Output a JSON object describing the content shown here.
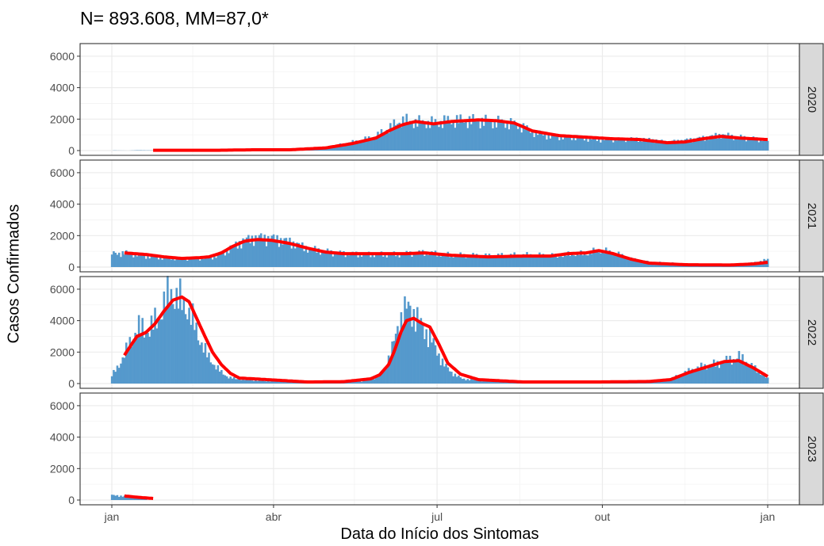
{
  "chart_data": {
    "type": "bar",
    "title": "N= 893.608, MM=87,0*",
    "xlabel": "Data do Início dos Sintomas",
    "ylabel": "Casos Confirmados",
    "ylim": [
      0,
      6500
    ],
    "yticks": [
      0,
      2000,
      4000,
      6000
    ],
    "xticks": [
      "jan",
      "abr",
      "jul",
      "out",
      "jan"
    ],
    "x_range_days": [
      1,
      366
    ],
    "grid": true,
    "colors": {
      "bars": "#5599cc",
      "moving_average": "#ff0000",
      "strip_bg": "#d9d9d9",
      "grid": "#ebebeb"
    },
    "series": [
      {
        "name": "Casos Confirmados",
        "kind": "bar"
      },
      {
        "name": "MM",
        "kind": "line"
      }
    ],
    "panels": [
      {
        "strip_label": "2020",
        "bars_range": [
          2,
          366
        ],
        "bars_anchors": [
          [
            2,
            10
          ],
          [
            10,
            0
          ],
          [
            15,
            20
          ],
          [
            25,
            10
          ],
          [
            40,
            5
          ],
          [
            60,
            5
          ],
          [
            80,
            30
          ],
          [
            100,
            40
          ],
          [
            118,
            150
          ],
          [
            130,
            400
          ],
          [
            140,
            650
          ],
          [
            148,
            900
          ],
          [
            152,
            1200
          ],
          [
            158,
            1600
          ],
          [
            162,
            1900
          ],
          [
            170,
            1800
          ],
          [
            180,
            1750
          ],
          [
            190,
            1900
          ],
          [
            200,
            1900
          ],
          [
            210,
            1850
          ],
          [
            220,
            1800
          ],
          [
            228,
            1600
          ],
          [
            235,
            1200
          ],
          [
            245,
            900
          ],
          [
            260,
            850
          ],
          [
            270,
            700
          ],
          [
            290,
            750
          ],
          [
            300,
            700
          ],
          [
            310,
            550
          ],
          [
            320,
            650
          ],
          [
            330,
            800
          ],
          [
            340,
            1000
          ],
          [
            350,
            850
          ],
          [
            366,
            650
          ]
        ],
        "ma_range": [
          24,
          366
        ],
        "ma_anchors": [
          [
            24,
            20
          ],
          [
            60,
            20
          ],
          [
            80,
            50
          ],
          [
            100,
            50
          ],
          [
            120,
            170
          ],
          [
            135,
            450
          ],
          [
            148,
            800
          ],
          [
            156,
            1300
          ],
          [
            163,
            1650
          ],
          [
            170,
            1850
          ],
          [
            180,
            1700
          ],
          [
            190,
            1850
          ],
          [
            205,
            1950
          ],
          [
            215,
            1900
          ],
          [
            225,
            1750
          ],
          [
            235,
            1250
          ],
          [
            250,
            950
          ],
          [
            265,
            850
          ],
          [
            280,
            750
          ],
          [
            295,
            700
          ],
          [
            310,
            500
          ],
          [
            320,
            550
          ],
          [
            330,
            750
          ],
          [
            340,
            900
          ],
          [
            350,
            800
          ],
          [
            366,
            700
          ]
        ]
      },
      {
        "strip_label": "2021",
        "bars_range": [
          1,
          366
        ],
        "bars_anchors": [
          [
            1,
            850
          ],
          [
            10,
            900
          ],
          [
            20,
            700
          ],
          [
            30,
            600
          ],
          [
            45,
            550
          ],
          [
            55,
            600
          ],
          [
            62,
            800
          ],
          [
            68,
            1300
          ],
          [
            75,
            1700
          ],
          [
            80,
            1850
          ],
          [
            85,
            1850
          ],
          [
            92,
            1800
          ],
          [
            100,
            1600
          ],
          [
            110,
            1200
          ],
          [
            125,
            900
          ],
          [
            140,
            800
          ],
          [
            160,
            800
          ],
          [
            175,
            900
          ],
          [
            190,
            750
          ],
          [
            210,
            700
          ],
          [
            230,
            750
          ],
          [
            250,
            700
          ],
          [
            255,
            800
          ],
          [
            265,
            850
          ],
          [
            272,
            1050
          ],
          [
            280,
            900
          ],
          [
            290,
            500
          ],
          [
            300,
            300
          ],
          [
            310,
            250
          ],
          [
            320,
            200
          ],
          [
            340,
            150
          ],
          [
            355,
            200
          ],
          [
            365,
            450
          ]
        ],
        "ma_range": [
          8,
          366
        ],
        "ma_anchors": [
          [
            8,
            900
          ],
          [
            20,
            800
          ],
          [
            30,
            650
          ],
          [
            40,
            550
          ],
          [
            50,
            600
          ],
          [
            55,
            650
          ],
          [
            62,
            900
          ],
          [
            68,
            1300
          ],
          [
            75,
            1650
          ],
          [
            82,
            1750
          ],
          [
            90,
            1700
          ],
          [
            100,
            1500
          ],
          [
            110,
            1200
          ],
          [
            120,
            950
          ],
          [
            130,
            850
          ],
          [
            150,
            850
          ],
          [
            165,
            850
          ],
          [
            175,
            900
          ],
          [
            190,
            750
          ],
          [
            210,
            650
          ],
          [
            230,
            700
          ],
          [
            245,
            700
          ],
          [
            255,
            850
          ],
          [
            265,
            900
          ],
          [
            272,
            1050
          ],
          [
            280,
            850
          ],
          [
            290,
            500
          ],
          [
            300,
            250
          ],
          [
            320,
            150
          ],
          [
            345,
            130
          ],
          [
            358,
            200
          ],
          [
            366,
            300
          ]
        ]
      },
      {
        "strip_label": "2022",
        "bars_range": [
          1,
          366
        ],
        "bars_anchors": [
          [
            1,
            500
          ],
          [
            5,
            1200
          ],
          [
            8,
            1800
          ],
          [
            12,
            2800
          ],
          [
            15,
            3500
          ],
          [
            22,
            3400
          ],
          [
            27,
            4200
          ],
          [
            30,
            5000
          ],
          [
            34,
            5800
          ],
          [
            38,
            5300
          ],
          [
            42,
            5000
          ],
          [
            46,
            4000
          ],
          [
            50,
            2800
          ],
          [
            54,
            1800
          ],
          [
            58,
            1200
          ],
          [
            62,
            700
          ],
          [
            66,
            400
          ],
          [
            70,
            300
          ],
          [
            80,
            200
          ],
          [
            100,
            100
          ],
          [
            120,
            80
          ],
          [
            140,
            150
          ],
          [
            145,
            300
          ],
          [
            150,
            500
          ],
          [
            153,
            1000
          ],
          [
            157,
            2200
          ],
          [
            160,
            3500
          ],
          [
            163,
            4500
          ],
          [
            166,
            4800
          ],
          [
            170,
            4300
          ],
          [
            174,
            3500
          ],
          [
            178,
            3000
          ],
          [
            182,
            2000
          ],
          [
            186,
            1200
          ],
          [
            190,
            700
          ],
          [
            196,
            300
          ],
          [
            210,
            150
          ],
          [
            240,
            100
          ],
          [
            270,
            100
          ],
          [
            300,
            150
          ],
          [
            312,
            300
          ],
          [
            322,
            800
          ],
          [
            330,
            1100
          ],
          [
            340,
            1300
          ],
          [
            350,
            1700
          ],
          [
            356,
            1200
          ],
          [
            366,
            300
          ]
        ],
        "ma_range": [
          8,
          366
        ],
        "ma_anchors": [
          [
            8,
            1800
          ],
          [
            12,
            2500
          ],
          [
            15,
            3000
          ],
          [
            20,
            3250
          ],
          [
            25,
            3800
          ],
          [
            30,
            4600
          ],
          [
            35,
            5300
          ],
          [
            40,
            5500
          ],
          [
            44,
            5200
          ],
          [
            48,
            4200
          ],
          [
            52,
            3200
          ],
          [
            57,
            2000
          ],
          [
            62,
            1200
          ],
          [
            67,
            650
          ],
          [
            72,
            350
          ],
          [
            80,
            300
          ],
          [
            95,
            200
          ],
          [
            110,
            100
          ],
          [
            130,
            120
          ],
          [
            145,
            300
          ],
          [
            150,
            550
          ],
          [
            155,
            1200
          ],
          [
            158,
            2000
          ],
          [
            162,
            3300
          ],
          [
            165,
            4000
          ],
          [
            169,
            4150
          ],
          [
            174,
            3800
          ],
          [
            178,
            3600
          ],
          [
            183,
            2500
          ],
          [
            188,
            1300
          ],
          [
            195,
            600
          ],
          [
            205,
            250
          ],
          [
            230,
            100
          ],
          [
            270,
            100
          ],
          [
            300,
            130
          ],
          [
            312,
            250
          ],
          [
            322,
            700
          ],
          [
            332,
            1050
          ],
          [
            342,
            1400
          ],
          [
            350,
            1450
          ],
          [
            358,
            1000
          ],
          [
            366,
            450
          ]
        ]
      },
      {
        "strip_label": "2023",
        "bars_range": [
          1,
          20
        ],
        "bars_anchors": [
          [
            1,
            300
          ],
          [
            8,
            250
          ],
          [
            15,
            180
          ],
          [
            20,
            150
          ]
        ],
        "ma_range": [
          8,
          24
        ],
        "ma_anchors": [
          [
            8,
            260
          ],
          [
            15,
            180
          ],
          [
            24,
            100
          ]
        ]
      }
    ]
  }
}
